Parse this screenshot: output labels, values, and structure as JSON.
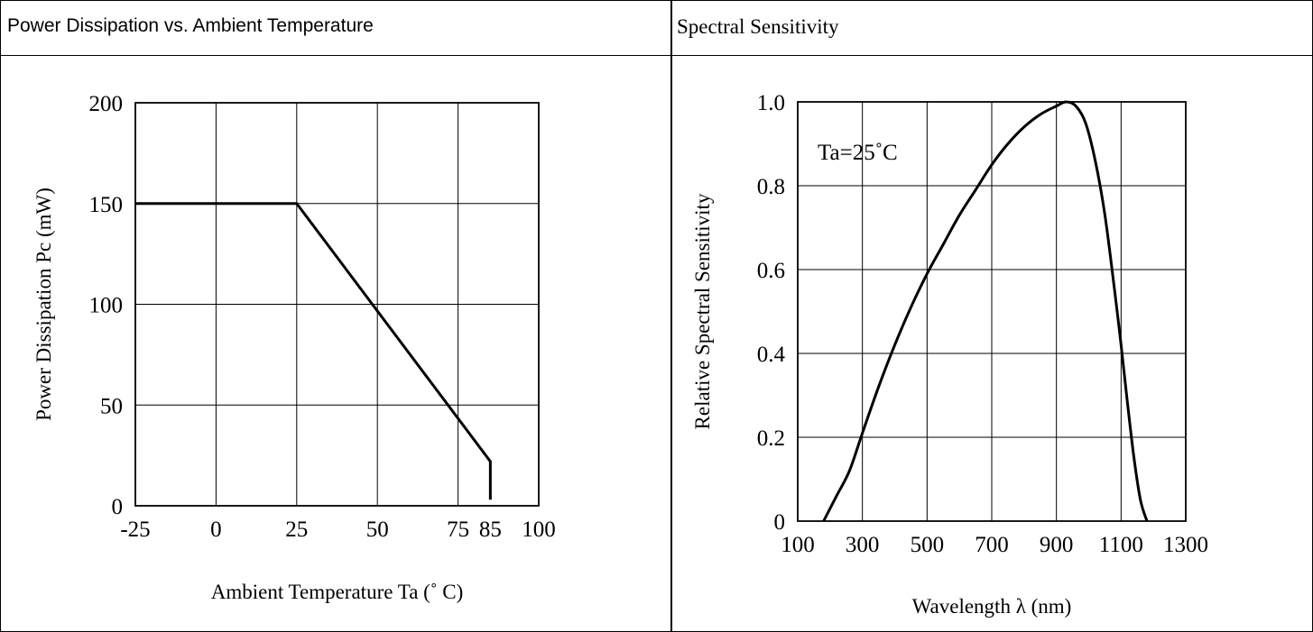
{
  "chart_data": [
    {
      "type": "line",
      "title": "Power Dissipation vs. Ambient Temperature",
      "xlabel": "Ambient Temperature Ta (˚ C)",
      "ylabel": "Power Dissipation Pc (mW)",
      "xlim": [
        -25,
        100
      ],
      "ylim": [
        0,
        200
      ],
      "x_ticks": [
        -25,
        0,
        25,
        50,
        75,
        85,
        100
      ],
      "x_tick_labels": [
        "-25",
        "0",
        "25",
        "50",
        "75",
        "85",
        "100"
      ],
      "y_ticks": [
        0,
        50,
        100,
        150,
        200
      ],
      "y_tick_labels": [
        "0",
        "50",
        "100",
        "150",
        "200"
      ],
      "x_grid": [
        0,
        25,
        50,
        75
      ],
      "y_grid": [
        50,
        100,
        150
      ],
      "grid": true,
      "series": [
        {
          "x": [
            -25,
            25,
            85,
            85
          ],
          "y": [
            150,
            150,
            22,
            3
          ]
        }
      ]
    },
    {
      "type": "line",
      "title": "Spectral Sensitivity",
      "xlabel": "Wavelength λ (nm)",
      "ylabel": "Relative Spectral Sensitivity",
      "xlim": [
        100,
        1300
      ],
      "ylim": [
        0,
        1.0
      ],
      "x_ticks": [
        100,
        300,
        500,
        700,
        900,
        1100,
        1300
      ],
      "x_tick_labels": [
        "100",
        "300",
        "500",
        "700",
        "900",
        "1100",
        "1300"
      ],
      "y_ticks": [
        0,
        0.2,
        0.4,
        0.6,
        0.8,
        1.0
      ],
      "y_tick_labels": [
        "0",
        "0.2",
        "0.4",
        "0.6",
        "0.8",
        "1.0"
      ],
      "x_grid": [
        300,
        500,
        700,
        900,
        1100
      ],
      "y_grid": [
        0.2,
        0.4,
        0.6,
        0.8
      ],
      "grid": true,
      "annotation": "Ta=25˚C",
      "series": [
        {
          "x": [
            180,
            220,
            260,
            300,
            350,
            400,
            450,
            500,
            550,
            600,
            650,
            700,
            750,
            800,
            850,
            900,
            930,
            960,
            990,
            1020,
            1050,
            1080,
            1100,
            1120,
            1140,
            1160,
            1180
          ],
          "y": [
            0.0,
            0.06,
            0.12,
            0.21,
            0.32,
            0.42,
            0.51,
            0.59,
            0.66,
            0.73,
            0.79,
            0.85,
            0.9,
            0.94,
            0.97,
            0.99,
            1.0,
            0.99,
            0.95,
            0.86,
            0.73,
            0.55,
            0.42,
            0.28,
            0.15,
            0.05,
            0.0
          ]
        }
      ]
    }
  ]
}
